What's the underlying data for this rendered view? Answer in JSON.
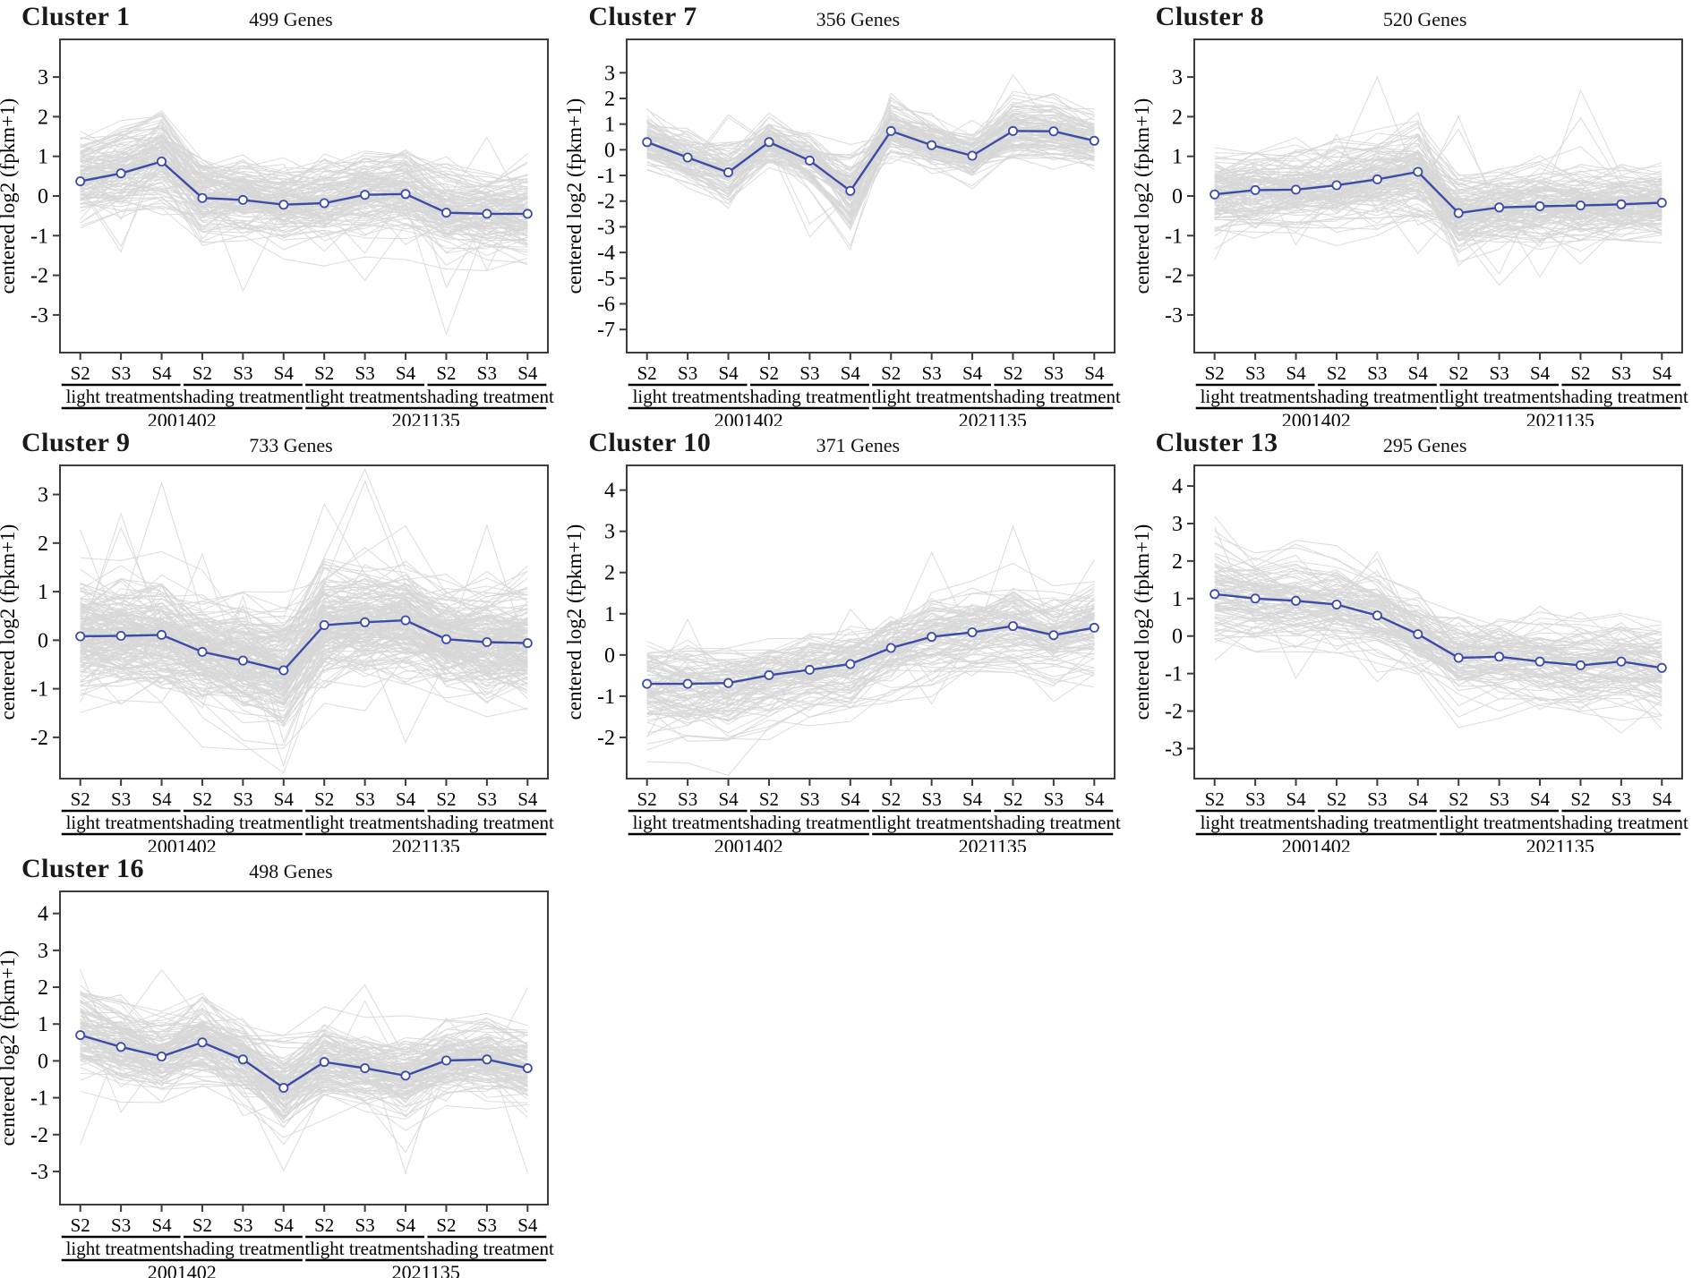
{
  "figure": {
    "ylabel": "centered log2 (fpkm+1)",
    "x_tick_labels": [
      "S2",
      "S3",
      "S4",
      "S2",
      "S3",
      "S4",
      "S2",
      "S3",
      "S4",
      "S2",
      "S3",
      "S4"
    ],
    "treatment_groups": [
      "light treatment",
      "shading treatment",
      "light treatment",
      "shading treatment"
    ],
    "genotype_groups": [
      "2001402",
      "2021135"
    ],
    "colors": {
      "mean_line": "#3c4ba5",
      "marker_fill": "#ffffff",
      "gene_line": "#d7d7d7",
      "axis": "#3c3c3c",
      "text": "#000000",
      "background": "#ffffff"
    }
  },
  "chart_data": [
    {
      "type": "line",
      "title": "Cluster 1",
      "subtitle": "499 Genes",
      "gene_count": 499,
      "ylabel": "centered log2 (fpkm+1)",
      "categories": [
        "2001402-light-S2",
        "2001402-light-S3",
        "2001402-light-S4",
        "2001402-shading-S2",
        "2001402-shading-S3",
        "2001402-shading-S4",
        "2021135-light-S2",
        "2021135-light-S3",
        "2021135-light-S4",
        "2021135-shading-S2",
        "2021135-shading-S3",
        "2021135-shading-S4"
      ],
      "series": [
        {
          "name": "cluster mean",
          "values": [
            0.37,
            0.57,
            0.87,
            -0.05,
            -0.1,
            -0.22,
            -0.18,
            0.03,
            0.05,
            -0.42,
            -0.45,
            -0.45
          ]
        }
      ],
      "background_series": "individual gene expression profiles (gray)",
      "yticks": [
        3,
        2,
        1,
        0,
        -1,
        -2,
        -3
      ],
      "ylim": [
        -3.95,
        3.95
      ],
      "legend": "none",
      "grid": false
    },
    {
      "type": "line",
      "title": "Cluster 7",
      "subtitle": "356 Genes",
      "gene_count": 356,
      "ylabel": "centered log2 (fpkm+1)",
      "categories": [
        "2001402-light-S2",
        "2001402-light-S3",
        "2001402-light-S4",
        "2001402-shading-S2",
        "2001402-shading-S3",
        "2001402-shading-S4",
        "2021135-light-S2",
        "2021135-light-S3",
        "2021135-light-S4",
        "2021135-shading-S2",
        "2021135-shading-S3",
        "2021135-shading-S4"
      ],
      "series": [
        {
          "name": "cluster mean",
          "values": [
            0.3,
            -0.3,
            -0.88,
            0.3,
            -0.42,
            -1.6,
            0.73,
            0.18,
            -0.23,
            0.73,
            0.72,
            0.35
          ]
        }
      ],
      "background_series": "individual gene expression profiles (gray)",
      "yticks": [
        3,
        2,
        1,
        0,
        -1,
        -2,
        -3,
        -4,
        -5,
        -6,
        -7
      ],
      "ylim": [
        -7.9,
        4.3
      ],
      "legend": "none",
      "grid": false
    },
    {
      "type": "line",
      "title": "Cluster 8",
      "subtitle": "520 Genes",
      "gene_count": 520,
      "ylabel": "centered log2 (fpkm+1)",
      "categories": [
        "2001402-light-S2",
        "2001402-light-S3",
        "2001402-light-S4",
        "2001402-shading-S2",
        "2001402-shading-S3",
        "2001402-shading-S4",
        "2021135-light-S2",
        "2021135-light-S3",
        "2021135-light-S4",
        "2021135-shading-S2",
        "2021135-shading-S3",
        "2021135-shading-S4"
      ],
      "series": [
        {
          "name": "cluster mean",
          "values": [
            0.04,
            0.15,
            0.16,
            0.27,
            0.42,
            0.61,
            -0.43,
            -0.29,
            -0.26,
            -0.24,
            -0.21,
            -0.17
          ]
        }
      ],
      "background_series": "individual gene expression profiles (gray)",
      "yticks": [
        3,
        2,
        1,
        0,
        -1,
        -2,
        -3
      ],
      "ylim": [
        -3.95,
        3.95
      ],
      "legend": "none",
      "grid": false
    },
    {
      "type": "line",
      "title": "Cluster 9",
      "subtitle": "733 Genes",
      "gene_count": 733,
      "ylabel": "centered log2 (fpkm+1)",
      "categories": [
        "2001402-light-S2",
        "2001402-light-S3",
        "2001402-light-S4",
        "2001402-shading-S2",
        "2001402-shading-S3",
        "2001402-shading-S4",
        "2021135-light-S2",
        "2021135-light-S3",
        "2021135-light-S4",
        "2021135-shading-S2",
        "2021135-shading-S3",
        "2021135-shading-S4"
      ],
      "series": [
        {
          "name": "cluster mean",
          "values": [
            0.08,
            0.09,
            0.11,
            -0.24,
            -0.42,
            -0.62,
            0.31,
            0.37,
            0.41,
            0.02,
            -0.04,
            -0.06
          ]
        }
      ],
      "background_series": "individual gene expression profiles (gray)",
      "yticks": [
        3,
        2,
        1,
        0,
        -1,
        -2
      ],
      "ylim": [
        -2.85,
        3.6
      ],
      "legend": "none",
      "grid": false
    },
    {
      "type": "line",
      "title": "Cluster 10",
      "subtitle": "371 Genes",
      "gene_count": 371,
      "ylabel": "centered log2 (fpkm+1)",
      "categories": [
        "2001402-light-S2",
        "2001402-light-S3",
        "2001402-light-S4",
        "2001402-shading-S2",
        "2001402-shading-S3",
        "2001402-shading-S4",
        "2021135-light-S2",
        "2021135-light-S3",
        "2021135-light-S4",
        "2021135-shading-S2",
        "2021135-shading-S3",
        "2021135-shading-S4"
      ],
      "series": [
        {
          "name": "cluster mean",
          "values": [
            -0.7,
            -0.7,
            -0.68,
            -0.49,
            -0.36,
            -0.22,
            0.17,
            0.44,
            0.55,
            0.7,
            0.48,
            0.66
          ]
        }
      ],
      "background_series": "individual gene expression profiles (gray)",
      "yticks": [
        4,
        3,
        2,
        1,
        0,
        -1,
        -2
      ],
      "ylim": [
        -3.0,
        4.6
      ],
      "legend": "none",
      "grid": false
    },
    {
      "type": "line",
      "title": "Cluster 13",
      "subtitle": "295 Genes",
      "gene_count": 295,
      "ylabel": "centered log2 (fpkm+1)",
      "categories": [
        "2001402-light-S2",
        "2001402-light-S3",
        "2001402-light-S4",
        "2001402-shading-S2",
        "2001402-shading-S3",
        "2001402-shading-S4",
        "2021135-light-S2",
        "2021135-light-S3",
        "2021135-light-S4",
        "2021135-shading-S2",
        "2021135-shading-S3",
        "2021135-shading-S4"
      ],
      "series": [
        {
          "name": "cluster mean",
          "values": [
            1.12,
            1.0,
            0.94,
            0.84,
            0.55,
            0.05,
            -0.58,
            -0.55,
            -0.68,
            -0.78,
            -0.68,
            -0.85
          ]
        }
      ],
      "background_series": "individual gene expression profiles (gray)",
      "yticks": [
        4,
        3,
        2,
        1,
        0,
        -1,
        -2,
        -3
      ],
      "ylim": [
        -3.8,
        4.55
      ],
      "legend": "none",
      "grid": false
    },
    {
      "type": "line",
      "title": "Cluster 16",
      "subtitle": "498 Genes",
      "gene_count": 498,
      "ylabel": "centered log2 (fpkm+1)",
      "categories": [
        "2001402-light-S2",
        "2001402-light-S3",
        "2001402-light-S4",
        "2001402-shading-S2",
        "2001402-shading-S3",
        "2001402-shading-S4",
        "2021135-light-S2",
        "2021135-light-S3",
        "2021135-light-S4",
        "2021135-shading-S2",
        "2021135-shading-S3",
        "2021135-shading-S4"
      ],
      "series": [
        {
          "name": "cluster mean",
          "values": [
            0.7,
            0.38,
            0.12,
            0.5,
            0.04,
            -0.73,
            -0.03,
            -0.2,
            -0.4,
            0.01,
            0.04,
            -0.2
          ]
        }
      ],
      "background_series": "individual gene expression profiles (gray)",
      "yticks": [
        4,
        3,
        2,
        1,
        0,
        -1,
        -2,
        -3
      ],
      "ylim": [
        -3.9,
        4.6
      ],
      "legend": "none",
      "grid": false
    }
  ]
}
